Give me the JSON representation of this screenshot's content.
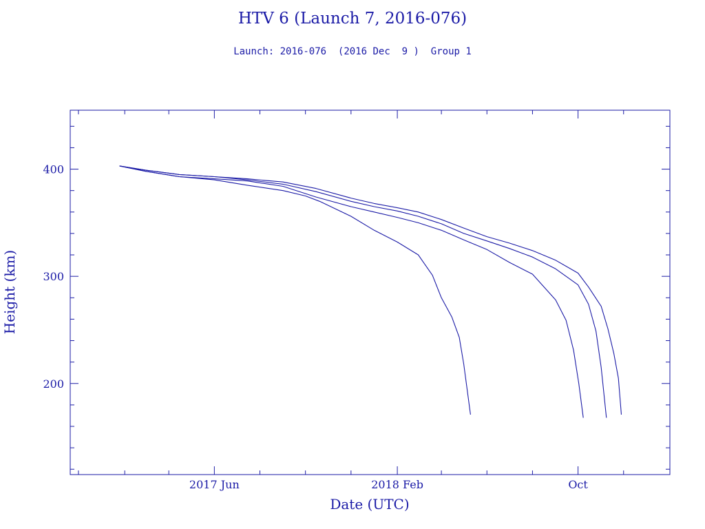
{
  "title": "HTV 6 (Launch 7, 2016-076)",
  "subtitle": "Launch: 2016-076  (2016 Dec  9 )  Group 1",
  "colors": {
    "axis": "#1a1aa6",
    "line": "#1a1aa6",
    "background": "#ffffff"
  },
  "chart_data": {
    "type": "line",
    "title": "HTV 6 (Launch 7, 2016-076)",
    "subtitle": "Launch: 2016-076  (2016 Dec  9 )  Group 1",
    "xlabel": "Date (UTC)",
    "ylabel": "Height (km)",
    "xlim": [
      "2016-11-20",
      "2019-02-01"
    ],
    "ylim": [
      115,
      455
    ],
    "x_ticks": [
      {
        "date": "2017-06-01",
        "label": "2017 Jun"
      },
      {
        "date": "2018-02-01",
        "label": "2018 Feb"
      },
      {
        "date": "2018-10-01",
        "label": "Oct"
      }
    ],
    "y_ticks": [
      {
        "value": 200,
        "label": "200"
      },
      {
        "value": 300,
        "label": "300"
      },
      {
        "value": 400,
        "label": "400"
      }
    ],
    "grid": false,
    "legend": "none",
    "series": [
      {
        "x": [
          "2017-01-25",
          "2017-03-01",
          "2017-04-15",
          "2017-06-01",
          "2017-07-15",
          "2017-09-01",
          "2017-10-01",
          "2017-10-20",
          "2017-12-01",
          "2018-01-01",
          "2018-02-01",
          "2018-03-01",
          "2018-03-20",
          "2018-04-01",
          "2018-04-15",
          "2018-04-25",
          "2018-05-01",
          "2018-05-10"
        ],
        "y": [
          403,
          398,
          393,
          390,
          385,
          380,
          375,
          370,
          356,
          343,
          332,
          320,
          301,
          280,
          262,
          243,
          218,
          171
        ]
      },
      {
        "x": [
          "2017-01-25",
          "2017-03-01",
          "2017-04-15",
          "2017-06-01",
          "2017-07-15",
          "2017-09-01",
          "2017-10-15",
          "2017-12-01",
          "2018-01-01",
          "2018-02-01",
          "2018-03-01",
          "2018-04-01",
          "2018-05-01",
          "2018-06-01",
          "2018-07-01",
          "2018-08-01",
          "2018-09-01",
          "2018-09-15",
          "2018-09-25",
          "2018-10-02",
          "2018-10-08"
        ],
        "y": [
          403,
          398,
          393,
          391,
          389,
          384,
          374,
          365,
          360,
          355,
          350,
          343,
          334,
          325,
          313,
          302,
          278,
          259,
          231,
          200,
          168
        ]
      },
      {
        "x": [
          "2017-01-25",
          "2017-03-01",
          "2017-04-15",
          "2017-06-01",
          "2017-07-15",
          "2017-09-01",
          "2017-10-15",
          "2017-12-01",
          "2018-01-01",
          "2018-02-01",
          "2018-03-01",
          "2018-04-01",
          "2018-05-01",
          "2018-06-01",
          "2018-07-01",
          "2018-08-01",
          "2018-09-01",
          "2018-10-01",
          "2018-10-15",
          "2018-10-25",
          "2018-11-01",
          "2018-11-08"
        ],
        "y": [
          403,
          399,
          395,
          393,
          390,
          386,
          379,
          370,
          365,
          361,
          356,
          349,
          340,
          333,
          326,
          318,
          307,
          292,
          274,
          249,
          215,
          168
        ]
      },
      {
        "x": [
          "2017-01-25",
          "2017-03-01",
          "2017-04-15",
          "2017-06-01",
          "2017-07-15",
          "2017-09-01",
          "2017-10-15",
          "2017-12-01",
          "2018-01-01",
          "2018-02-01",
          "2018-03-01",
          "2018-04-01",
          "2018-05-01",
          "2018-06-01",
          "2018-07-01",
          "2018-08-01",
          "2018-09-01",
          "2018-10-01",
          "2018-10-15",
          "2018-11-01",
          "2018-11-10",
          "2018-11-18",
          "2018-11-24",
          "2018-11-28"
        ],
        "y": [
          403,
          399,
          395,
          393,
          391,
          388,
          382,
          373,
          368,
          364,
          360,
          353,
          345,
          337,
          331,
          324,
          315,
          303,
          290,
          272,
          251,
          228,
          205,
          171
        ]
      }
    ]
  }
}
